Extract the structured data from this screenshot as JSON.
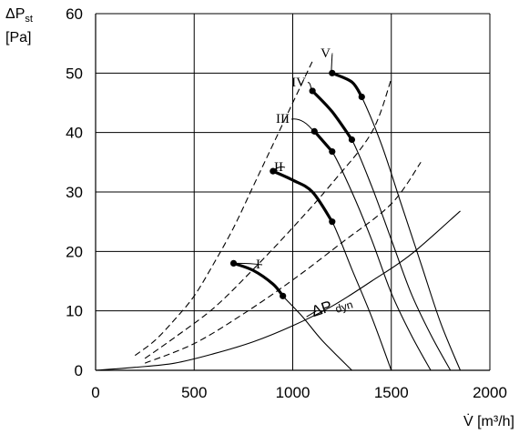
{
  "chart_data": {
    "type": "line",
    "title": "",
    "xlabel": "V̇ [m³/h]",
    "ylabel": [
      "ΔP",
      "st",
      "[Pa]"
    ],
    "xlim": [
      0,
      2000
    ],
    "ylim": [
      0,
      60
    ],
    "xticks": [
      0,
      500,
      1000,
      1500,
      2000
    ],
    "yticks": [
      0,
      10,
      20,
      30,
      40,
      50,
      60
    ],
    "grid": true,
    "fan_curves": [
      {
        "label": "I",
        "points": [
          [
            700,
            18
          ],
          [
            800,
            16.8
          ],
          [
            900,
            14.5
          ],
          [
            950,
            12.5
          ],
          [
            1050,
            9
          ],
          [
            1150,
            5
          ],
          [
            1300,
            0
          ]
        ],
        "op_range": [
          [
            700,
            18
          ],
          [
            950,
            12.5
          ]
        ]
      },
      {
        "label": "II",
        "points": [
          [
            900,
            33.5
          ],
          [
            1000,
            32
          ],
          [
            1100,
            30
          ],
          [
            1200,
            25
          ],
          [
            1300,
            17
          ],
          [
            1400,
            9
          ],
          [
            1500,
            0
          ]
        ],
        "op_range": [
          [
            900,
            33.5
          ],
          [
            1200,
            25
          ]
        ]
      },
      {
        "label": "III",
        "points": [
          [
            1110,
            40.2
          ],
          [
            1200,
            36.8
          ],
          [
            1300,
            30
          ],
          [
            1400,
            22
          ],
          [
            1500,
            13
          ],
          [
            1600,
            6
          ],
          [
            1700,
            0
          ]
        ],
        "op_range": [
          [
            1110,
            40.2
          ],
          [
            1200,
            36.8
          ]
        ]
      },
      {
        "label": "IV",
        "points": [
          [
            1100,
            47
          ],
          [
            1200,
            43.5
          ],
          [
            1300,
            38.8
          ],
          [
            1400,
            31
          ],
          [
            1500,
            22
          ],
          [
            1600,
            13
          ],
          [
            1700,
            6
          ],
          [
            1800,
            0
          ]
        ],
        "op_range": [
          [
            1100,
            47
          ],
          [
            1300,
            38.8
          ]
        ]
      },
      {
        "label": "V",
        "points": [
          [
            1200,
            50
          ],
          [
            1300,
            48.5
          ],
          [
            1350,
            46
          ],
          [
            1450,
            38
          ],
          [
            1550,
            28
          ],
          [
            1650,
            18
          ],
          [
            1750,
            8
          ],
          [
            1850,
            0
          ]
        ],
        "op_range": [
          [
            1200,
            50
          ],
          [
            1350,
            46
          ]
        ]
      }
    ],
    "system_curves": [
      {
        "points": [
          [
            200,
            2.5
          ],
          [
            300,
            5
          ],
          [
            400,
            8.5
          ],
          [
            500,
            12.5
          ],
          [
            600,
            18
          ],
          [
            700,
            24
          ],
          [
            800,
            31
          ],
          [
            900,
            38
          ],
          [
            1000,
            45
          ],
          [
            1100,
            52
          ]
        ]
      },
      {
        "points": [
          [
            250,
            2
          ],
          [
            400,
            5.5
          ],
          [
            600,
            10.5
          ],
          [
            800,
            17
          ],
          [
            1000,
            24
          ],
          [
            1200,
            31.5
          ],
          [
            1400,
            40
          ],
          [
            1500,
            49
          ]
        ]
      },
      {
        "points": [
          [
            250,
            1.2
          ],
          [
            500,
            4.5
          ],
          [
            750,
            9.5
          ],
          [
            1000,
            15.2
          ],
          [
            1250,
            21.5
          ],
          [
            1500,
            28
          ],
          [
            1650,
            35
          ]
        ]
      }
    ],
    "dynamic_curve": {
      "label": "ΔP",
      "label_sub": "dyn",
      "points": [
        [
          0,
          0
        ],
        [
          200,
          0.5
        ],
        [
          400,
          1.2
        ],
        [
          600,
          2.8
        ],
        [
          800,
          4.8
        ],
        [
          1000,
          7.5
        ],
        [
          1200,
          10.8
        ],
        [
          1400,
          15
        ],
        [
          1600,
          19.5
        ],
        [
          1850,
          26.8
        ]
      ]
    }
  }
}
